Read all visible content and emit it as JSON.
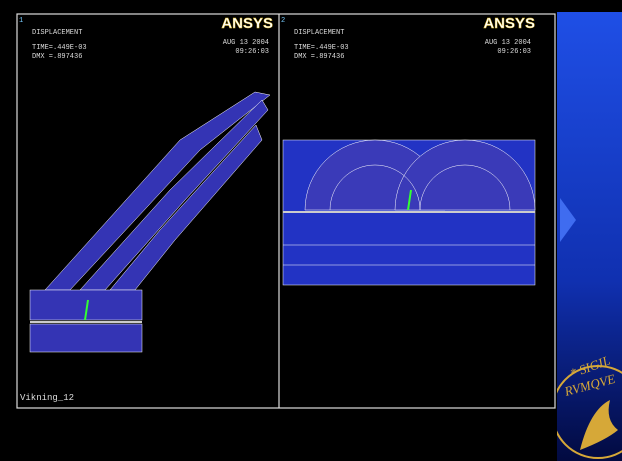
{
  "panels": [
    {
      "number": "1",
      "title": "DISPLACEMENT",
      "time": "TIME=.449E-03",
      "dmx": "DMX =.897436",
      "date": "AUG 13 2004",
      "clock": "09:26:03",
      "logo": "ANSYS"
    },
    {
      "number": "2",
      "title": "DISPLACEMENT",
      "time": "TIME=.449E-03",
      "dmx": "DMX =.897436",
      "date": "AUG 13 2004",
      "clock": "09:26:03",
      "logo": "ANSYS"
    }
  ],
  "caption": "Vikning_12",
  "seal": {
    "top": "* SIGIL",
    "middle": "RVMQVE"
  }
}
